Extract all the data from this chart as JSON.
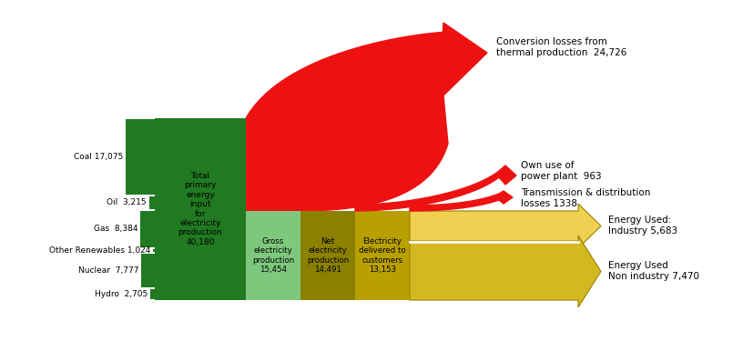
{
  "background_color": "#ffffff",
  "input_labels": [
    "Coal 17,075",
    "Oil  3,215",
    "Gas  8,384",
    "Other Renewables 1,024",
    "Nuclear  7,777",
    "Hydro  2,705"
  ],
  "input_values": [
    17075,
    3215,
    8384,
    1024,
    7777,
    2705
  ],
  "input_color": "#217a21",
  "block1_label": "Total\nprimary\nenergy\ninput\nfor\nelectricity\nproduction\n40,180",
  "block1_color": "#217a21",
  "block2_label": "Gross\nelectricity\nproduction\n15,454",
  "block2_color": "#7ec87e",
  "block3_label": "Net\nelectricity\nproduction\n14,491",
  "block3_color": "#8b8000",
  "block4_label": "Electricity\ndelivered to\ncustomers\n13,153",
  "block4_color": "#b8a000",
  "loss1_label": "Conversion losses from\nthermal production  24,726",
  "loss2_label": "Own use of\npower plant  963",
  "loss3_label": "Transmission & distribution\nlosses 1338",
  "red_color": "#ee1111",
  "out1_label": "Energy Used:\nIndustry 5,683",
  "out1_color": "#f0d050",
  "out2_label": "Energy Used\nNon industry 7,470",
  "out2_color": "#d4b820",
  "fig_width": 8.16,
  "fig_height": 3.97,
  "dpi": 100
}
